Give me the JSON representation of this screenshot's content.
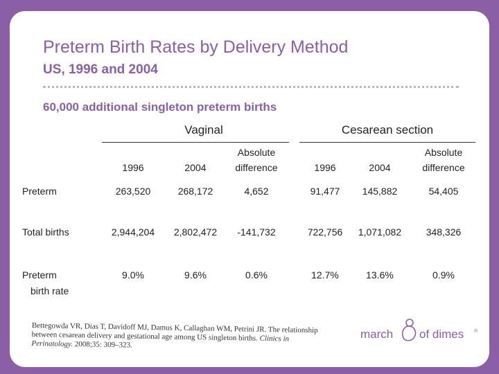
{
  "title": "Preterm Birth Rates by Delivery Method",
  "subtitle": "US, 1996 and 2004",
  "heading": "60,000 additional singleton preterm births",
  "groups": {
    "vaginal": "Vaginal",
    "cesarean": "Cesarean section"
  },
  "columns": {
    "y1996": "1996",
    "y2004": "2004",
    "abs1": "Absolute",
    "abs2": "difference"
  },
  "rows": {
    "preterm": {
      "label": "Preterm",
      "v": [
        "263,520",
        "268,172",
        "4,652",
        "91,477",
        "145,882",
        "54,405"
      ]
    },
    "total": {
      "label": "Total births",
      "v": [
        "2,944,204",
        "2,802,472",
        "-141,732",
        "722,756",
        "1,071,082",
        "348,326"
      ]
    },
    "rate": {
      "label1": "Preterm",
      "label2": "birth rate",
      "v": [
        "9.0%",
        "9.6%",
        "0.6%",
        "12.7%",
        "13.6%",
        "0.9%"
      ]
    }
  },
  "citation": {
    "authors": "Bettegowda VR, Dias T, Davidoff MJ, Damus K, Callaghan WM, Petrini JR.",
    "text": "The relationship between cesarean delivery and gestational age among US singleton births.",
    "journal": "Clinics in Perinatology.",
    "ref": "2008;35: 309–323."
  },
  "logo": {
    "part1": "march",
    "part2": "of dimes",
    "mark": "®"
  },
  "colors": {
    "brand": "#8a5fa6",
    "background": "#8a5fa6"
  }
}
